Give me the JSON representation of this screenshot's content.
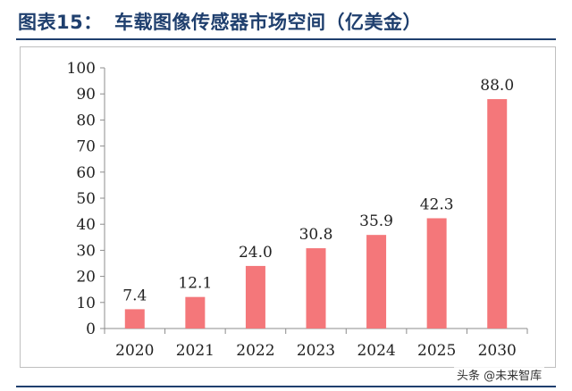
{
  "header": {
    "label": "图表15：",
    "title": "车载图像传感器市场空间（亿美金）"
  },
  "colors": {
    "accent": "#1f3f6e",
    "bar": "#f4777a",
    "axis": "#8c8c8c",
    "text": "#222222"
  },
  "watermark": "头条 @未来智库",
  "chart_data": {
    "type": "bar",
    "title": "",
    "xlabel": "",
    "ylabel": "",
    "categories": [
      "2020",
      "2021",
      "2022",
      "2023",
      "2024",
      "2025",
      "2030"
    ],
    "values": [
      7.4,
      12.1,
      24.0,
      30.8,
      35.9,
      42.3,
      88.0
    ],
    "value_labels": [
      "7.4",
      "12.1",
      "24.0",
      "30.8",
      "35.9",
      "42.3",
      "88.0"
    ],
    "ylim": [
      0,
      100
    ],
    "yticks": [
      0,
      10,
      20,
      30,
      40,
      50,
      60,
      70,
      80,
      90,
      100
    ],
    "grid": false,
    "legend": "none"
  }
}
